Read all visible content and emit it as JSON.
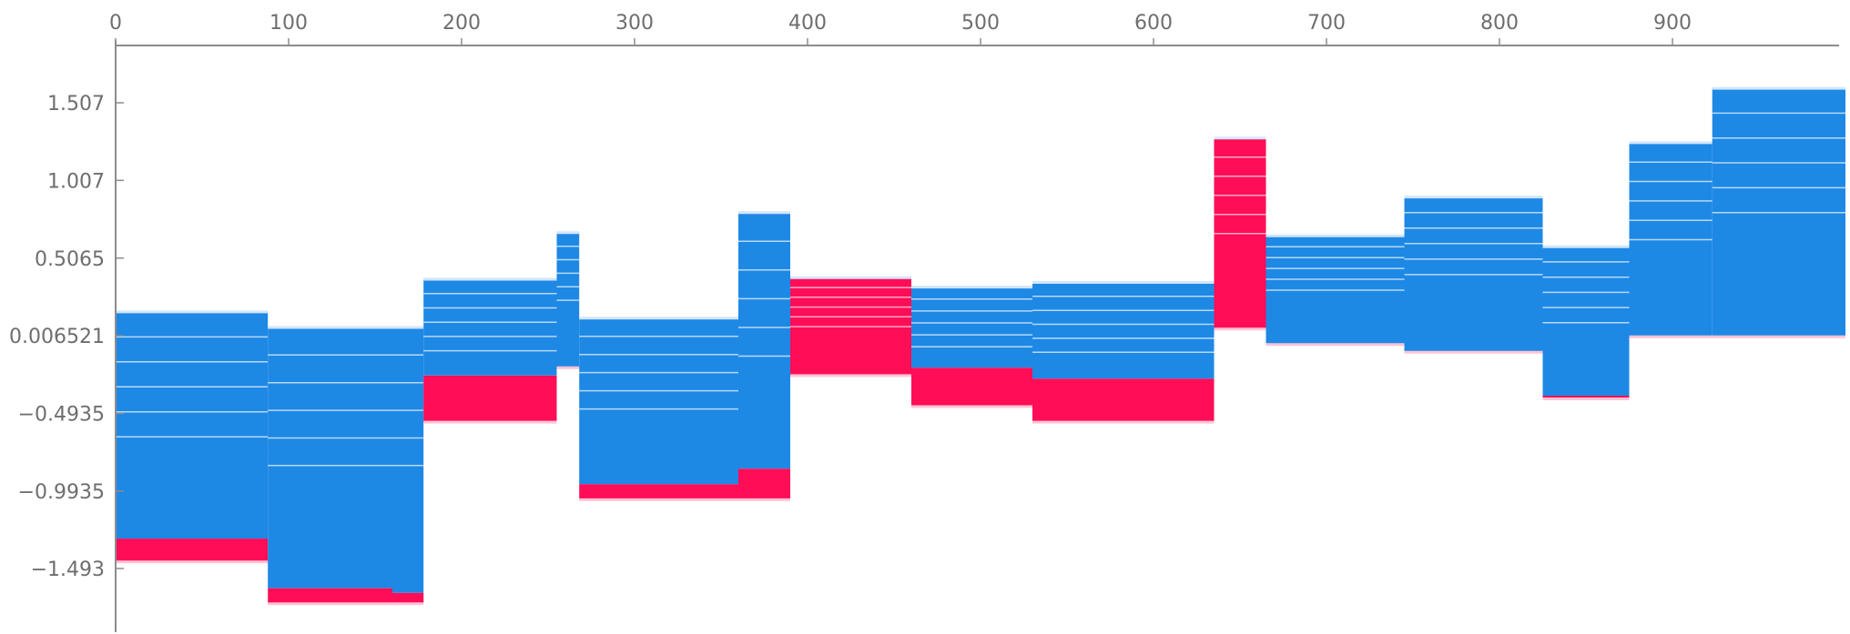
{
  "chart_data": {
    "type": "area",
    "title": "",
    "xlabel": "",
    "ylabel": "",
    "x_axis_position": "top",
    "xlim": [
      0,
      1000
    ],
    "ylim": [
      -1.75,
      1.6
    ],
    "x_ticks": [
      "0",
      "100",
      "200",
      "300",
      "400",
      "500",
      "600",
      "700",
      "800",
      "900"
    ],
    "x_tick_values": [
      0,
      100,
      200,
      300,
      400,
      500,
      600,
      700,
      800,
      900
    ],
    "y_ticks": [
      "1.507",
      "1.007",
      "0.5065",
      "0.006521",
      "−0.4935",
      "−0.9935",
      "−1.493"
    ],
    "y_tick_values": [
      1.507,
      1.007,
      0.5065,
      0.006521,
      -0.4935,
      -0.9935,
      -1.493
    ],
    "grid": false,
    "legend": "none",
    "colors": {
      "positive": "#ff0d57",
      "negative": "#1e88e5",
      "positive_line": "#ffc3d5",
      "negative_line": "#d1e6fa",
      "axis": "#8c8c8c",
      "tick_text": "#6e6e6e"
    },
    "base_value": 0.006521,
    "segments": [
      {
        "x": [
          0,
          88
        ],
        "top": 0.16,
        "pos_bottom": -1.3,
        "low": -1.45
      },
      {
        "x": [
          88,
          160
        ],
        "top": 0.06,
        "pos_bottom": -1.62,
        "low": -1.72
      },
      {
        "x": [
          160,
          178
        ],
        "top": 0.06,
        "pos_bottom": -1.65,
        "low": -1.72
      },
      {
        "x": [
          178,
          255
        ],
        "top": 0.37,
        "pos_bottom": -0.25,
        "low": -0.55
      },
      {
        "x": [
          255,
          268
        ],
        "top": 0.67,
        "pos_bottom": -0.2,
        "low": -0.2
      },
      {
        "x": [
          268,
          360
        ],
        "top": 0.12,
        "pos_bottom": -0.95,
        "low": -1.05
      },
      {
        "x": [
          360,
          390
        ],
        "top": 0.8,
        "pos_bottom": -0.85,
        "low": -1.05
      },
      {
        "x": [
          390,
          460
        ],
        "top": 0.38,
        "pos_bottom": 0.08,
        "low": -0.25
      },
      {
        "x": [
          460,
          530
        ],
        "top": 0.32,
        "pos_bottom": -0.2,
        "low": -0.45
      },
      {
        "x": [
          530,
          635
        ],
        "top": 0.35,
        "pos_bottom": -0.27,
        "low": -0.55
      },
      {
        "x": [
          635,
          665
        ],
        "top": 1.28,
        "pos_bottom": 0.05,
        "low": 0.05
      },
      {
        "x": [
          665,
          745
        ],
        "top": 0.65,
        "pos_bottom": -0.05,
        "low": -0.05
      },
      {
        "x": [
          745,
          825
        ],
        "top": 0.9,
        "pos_bottom": -0.1,
        "low": -0.1
      },
      {
        "x": [
          825,
          875
        ],
        "top": 0.58,
        "pos_bottom": -0.38,
        "low": -0.4
      },
      {
        "x": [
          875,
          923
        ],
        "top": 1.25,
        "pos_bottom": 0.0,
        "low": 0.0
      },
      {
        "x": [
          923,
          1000
        ],
        "top": 1.6,
        "pos_bottom": 0.0,
        "low": 0.0
      }
    ]
  }
}
